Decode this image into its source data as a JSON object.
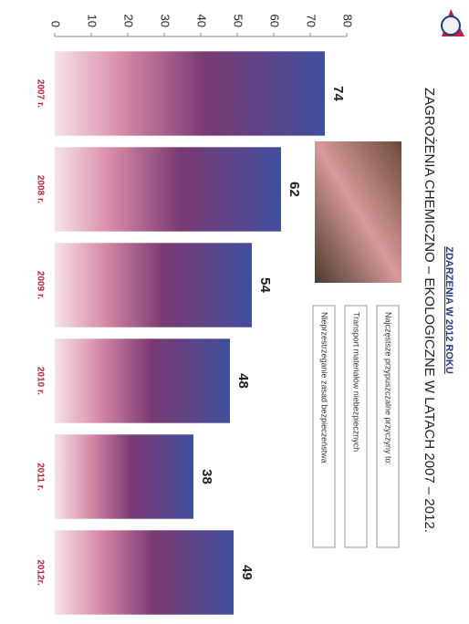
{
  "chart_data": {
    "type": "bar",
    "subtitle": "ZDARZENIA W 2012 ROKU",
    "title": "ZAGROŻENIA CHEMICZNO – EKOLOGICZNE W LATACH 2007 – 2012.",
    "notes": [
      "Najczęstsze przypuszczalne przyczyny to:",
      "Transport materiałów niebezpiecznych",
      "Nieprzestrzeganie zasad bezpieczeństwa"
    ],
    "categories": [
      "2007 r.",
      "2008 r.",
      "2009 r.",
      "2010 r.",
      "2011 r.",
      "2012r."
    ],
    "values": [
      74,
      62,
      54,
      48,
      38,
      49
    ],
    "color": "#3f4f9e",
    "ylim": [
      0,
      80
    ],
    "yticks": [
      0,
      10,
      20,
      30,
      40,
      50,
      60,
      70,
      80
    ]
  }
}
